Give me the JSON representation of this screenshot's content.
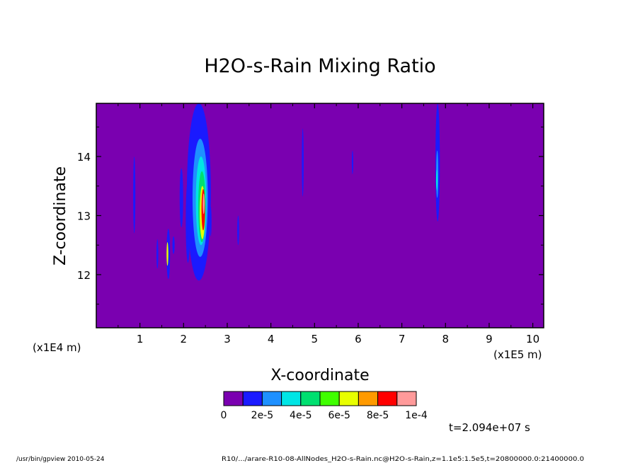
{
  "chart_data": {
    "type": "heatmap",
    "title": "H2O-s-Rain Mixing Ratio",
    "xlabel": "X-coordinate",
    "ylabel": "Z-coordinate",
    "x_scale_note": "(x1E5 m)",
    "y_scale_note": "(x1E4 m)",
    "xlim": [
      0,
      10.25
    ],
    "ylim": [
      11.1,
      14.9
    ],
    "x_ticks": [
      "1",
      "2",
      "3",
      "4",
      "5",
      "6",
      "7",
      "8",
      "9",
      "10"
    ],
    "y_ticks": [
      "12",
      "13",
      "14"
    ],
    "colorbar": {
      "colors": [
        "#7a00b0",
        "#1a1aff",
        "#1e90ff",
        "#00e5e5",
        "#00e070",
        "#40ff00",
        "#e8ff00",
        "#ff9a00",
        "#ff0000",
        "#ff9a9a"
      ],
      "labels": [
        "0",
        "2e-5",
        "4e-5",
        "6e-5",
        "8e-5",
        "1e-4"
      ],
      "range": [
        0,
        0.0001
      ]
    },
    "features": [
      {
        "x": 0.87,
        "z": 13.35,
        "w": 0.05,
        "h": 1.3,
        "level": 1
      },
      {
        "x": 1.4,
        "z": 12.35,
        "w": 0.04,
        "h": 0.5,
        "level": 1
      },
      {
        "x": 1.65,
        "z": 12.35,
        "w": 0.08,
        "h": 0.85,
        "level": 1
      },
      {
        "x": 1.63,
        "z": 12.35,
        "w": 0.04,
        "h": 0.4,
        "level": 6
      },
      {
        "x": 1.77,
        "z": 12.5,
        "w": 0.05,
        "h": 0.3,
        "level": 1
      },
      {
        "x": 1.95,
        "z": 13.3,
        "w": 0.08,
        "h": 1.0,
        "level": 1
      },
      {
        "x": 2.1,
        "z": 12.9,
        "w": 0.1,
        "h": 1.4,
        "level": 1
      },
      {
        "x": 2.35,
        "z": 13.4,
        "w": 0.55,
        "h": 3.0,
        "level": 1
      },
      {
        "x": 2.38,
        "z": 13.3,
        "w": 0.35,
        "h": 2.0,
        "level": 2
      },
      {
        "x": 2.4,
        "z": 13.25,
        "w": 0.24,
        "h": 1.5,
        "level": 3
      },
      {
        "x": 2.42,
        "z": 13.15,
        "w": 0.17,
        "h": 1.2,
        "level": 4
      },
      {
        "x": 2.43,
        "z": 13.05,
        "w": 0.12,
        "h": 0.9,
        "level": 6
      },
      {
        "x": 2.45,
        "z": 13.1,
        "w": 0.08,
        "h": 0.7,
        "level": 8
      },
      {
        "x": 2.46,
        "z": 13.2,
        "w": 0.04,
        "h": 0.35,
        "level": 9
      },
      {
        "x": 2.62,
        "z": 12.9,
        "w": 0.04,
        "h": 0.5,
        "level": 1
      },
      {
        "x": 3.25,
        "z": 12.75,
        "w": 0.04,
        "h": 0.5,
        "level": 1
      },
      {
        "x": 4.73,
        "z": 13.9,
        "w": 0.04,
        "h": 1.15,
        "level": 1
      },
      {
        "x": 5.87,
        "z": 13.9,
        "w": 0.03,
        "h": 0.4,
        "level": 1
      },
      {
        "x": 7.82,
        "z": 13.9,
        "w": 0.1,
        "h": 2.0,
        "level": 1
      },
      {
        "x": 7.81,
        "z": 13.7,
        "w": 0.05,
        "h": 0.8,
        "level": 2
      },
      {
        "x": 7.8,
        "z": 13.6,
        "w": 0.03,
        "h": 0.35,
        "level": 3
      }
    ]
  },
  "annotations": {
    "time_label": "t=2.094e+07 s",
    "footer_left": "/usr/bin/gpview  2010-05-24",
    "footer_right": "R10/.../arare-R10-08-AllNodes_H2O-s-Rain.nc@H2O-s-Rain,z=1.1e5:1.5e5,t=20800000.0:21400000.0"
  }
}
